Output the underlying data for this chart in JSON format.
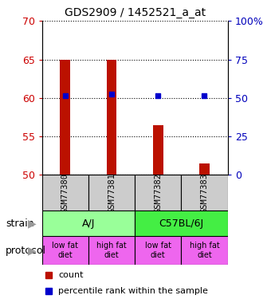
{
  "title": "GDS2909 / 1452521_a_at",
  "samples": [
    "GSM77380",
    "GSM77381",
    "GSM77382",
    "GSM77383"
  ],
  "bar_values": [
    65.0,
    65.0,
    56.5,
    51.5
  ],
  "bar_base": 50,
  "dot_values": [
    60.3,
    60.5,
    60.3,
    60.3
  ],
  "bar_color": "#bb1100",
  "dot_color": "#0000cc",
  "ylim": [
    50,
    70
  ],
  "yticks_left": [
    50,
    55,
    60,
    65,
    70
  ],
  "yticks_right_vals": [
    0,
    25,
    50,
    75,
    100
  ],
  "yticks_right_labels": [
    "0",
    "25",
    "50",
    "75",
    "100%"
  ],
  "strain_labels": [
    "A/J",
    "C57BL/6J"
  ],
  "strain_colors": [
    "#99ff99",
    "#44ee44"
  ],
  "protocol_labels": [
    "low fat\ndiet",
    "high fat\ndiet",
    "low fat\ndiet",
    "high fat\ndiet"
  ],
  "protocol_color": "#ee66ee",
  "sample_box_color": "#cccccc",
  "left_label_color": "#cc0000",
  "right_label_color": "#0000bb",
  "background": "#ffffff"
}
